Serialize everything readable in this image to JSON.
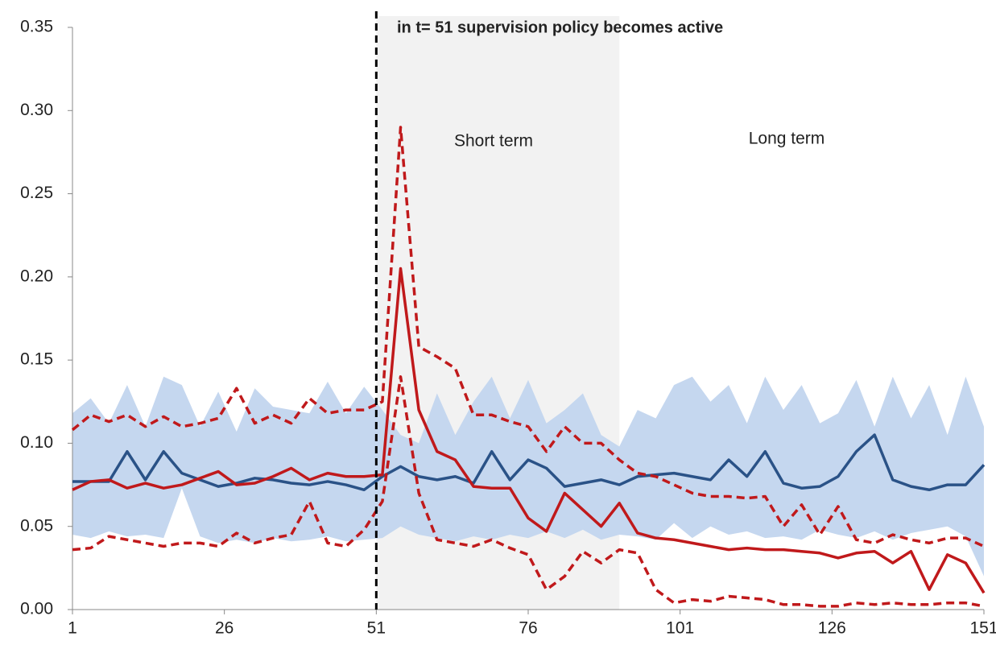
{
  "chart_data": {
    "type": "line",
    "title": "in t= 51 supervision policy becomes active",
    "annotations": [
      "Short term",
      "Long term"
    ],
    "x": [
      1,
      4,
      7,
      10,
      13,
      16,
      19,
      22,
      25,
      28,
      31,
      34,
      37,
      40,
      43,
      46,
      49,
      52,
      55,
      58,
      61,
      64,
      67,
      70,
      73,
      76,
      79,
      82,
      85,
      88,
      91,
      94,
      97,
      100,
      103,
      106,
      109,
      112,
      115,
      118,
      121,
      124,
      127,
      130,
      133,
      136,
      139,
      142,
      145,
      148,
      151
    ],
    "xlim": [
      1,
      151
    ],
    "xticks": [
      1,
      26,
      51,
      76,
      101,
      126,
      151
    ],
    "ylim": [
      0,
      0.35
    ],
    "yticks": [
      {
        "value": 0,
        "label": "0.00"
      },
      {
        "value": 0.05,
        "label": "0.05"
      },
      {
        "value": 0.1,
        "label": "0.10"
      },
      {
        "value": 0.15,
        "label": "0.15"
      },
      {
        "value": 0.2,
        "label": "0.20"
      },
      {
        "value": 0.25,
        "label": "0.25"
      },
      {
        "value": 0.3,
        "label": "0.30"
      },
      {
        "value": 0.35,
        "label": "0.35"
      }
    ],
    "vline": 51,
    "shaded_region": [
      51,
      91
    ],
    "shade_color": "#f2f2f2",
    "band": {
      "color": "#c5d7ef",
      "upper": [
        0.118,
        0.127,
        0.112,
        0.135,
        0.11,
        0.14,
        0.135,
        0.11,
        0.131,
        0.107,
        0.133,
        0.122,
        0.12,
        0.118,
        0.137,
        0.118,
        0.134,
        0.12,
        0.105,
        0.1,
        0.13,
        0.105,
        0.125,
        0.14,
        0.115,
        0.138,
        0.112,
        0.12,
        0.13,
        0.105,
        0.098,
        0.12,
        0.115,
        0.135,
        0.14,
        0.125,
        0.135,
        0.112,
        0.14,
        0.12,
        0.135,
        0.112,
        0.118,
        0.138,
        0.11,
        0.14,
        0.115,
        0.135,
        0.105,
        0.14,
        0.11
      ],
      "lower": [
        0.045,
        0.043,
        0.047,
        0.044,
        0.045,
        0.043,
        0.073,
        0.044,
        0.04,
        0.042,
        0.04,
        0.043,
        0.041,
        0.042,
        0.044,
        0.041,
        0.042,
        0.043,
        0.05,
        0.045,
        0.043,
        0.041,
        0.044,
        0.042,
        0.045,
        0.043,
        0.047,
        0.043,
        0.048,
        0.042,
        0.045,
        0.044,
        0.042,
        0.052,
        0.043,
        0.05,
        0.045,
        0.047,
        0.043,
        0.044,
        0.042,
        0.048,
        0.045,
        0.043,
        0.047,
        0.042,
        0.046,
        0.048,
        0.05,
        0.044,
        0.02
      ]
    },
    "series": [
      {
        "color": "#2a5287",
        "dashed": false,
        "values": [
          0.077,
          0.077,
          0.077,
          0.095,
          0.078,
          0.095,
          0.082,
          0.078,
          0.074,
          0.076,
          0.079,
          0.078,
          0.076,
          0.075,
          0.077,
          0.075,
          0.072,
          0.08,
          0.086,
          0.08,
          0.078,
          0.08,
          0.076,
          0.095,
          0.078,
          0.09,
          0.085,
          0.074,
          0.076,
          0.078,
          0.075,
          0.08,
          0.081,
          0.082,
          0.08,
          0.078,
          0.09,
          0.08,
          0.095,
          0.076,
          0.073,
          0.074,
          0.08,
          0.095,
          0.105,
          0.078,
          0.074,
          0.072,
          0.075,
          0.075,
          0.087
        ]
      },
      {
        "color": "#c0191b",
        "dashed": false,
        "values": [
          0.072,
          0.077,
          0.078,
          0.073,
          0.076,
          0.073,
          0.075,
          0.079,
          0.083,
          0.075,
          0.076,
          0.08,
          0.085,
          0.078,
          0.082,
          0.08,
          0.08,
          0.081,
          0.205,
          0.12,
          0.095,
          0.09,
          0.074,
          0.073,
          0.073,
          0.055,
          0.047,
          0.07,
          0.06,
          0.05,
          0.064,
          0.046,
          0.043,
          0.042,
          0.04,
          0.038,
          0.036,
          0.037,
          0.036,
          0.036,
          0.035,
          0.034,
          0.031,
          0.034,
          0.035,
          0.028,
          0.035,
          0.012,
          0.033,
          0.028,
          0.01
        ]
      },
      {
        "color": "#c0191b",
        "dashed": true,
        "values": [
          0.108,
          0.117,
          0.113,
          0.117,
          0.11,
          0.116,
          0.11,
          0.112,
          0.115,
          0.133,
          0.112,
          0.117,
          0.112,
          0.127,
          0.118,
          0.12,
          0.12,
          0.125,
          0.29,
          0.158,
          0.152,
          0.145,
          0.117,
          0.117,
          0.113,
          0.11,
          0.095,
          0.11,
          0.1,
          0.1,
          0.09,
          0.082,
          0.08,
          0.075,
          0.07,
          0.068,
          0.068,
          0.067,
          0.068,
          0.05,
          0.063,
          0.045,
          0.062,
          0.042,
          0.04,
          0.045,
          0.042,
          0.04,
          0.043,
          0.043,
          0.038
        ]
      },
      {
        "color": "#c0191b",
        "dashed": true,
        "values": [
          0.036,
          0.037,
          0.044,
          0.042,
          0.04,
          0.038,
          0.04,
          0.04,
          0.038,
          0.046,
          0.04,
          0.043,
          0.045,
          0.065,
          0.04,
          0.038,
          0.048,
          0.065,
          0.14,
          0.07,
          0.042,
          0.04,
          0.038,
          0.042,
          0.037,
          0.033,
          0.012,
          0.02,
          0.035,
          0.028,
          0.036,
          0.034,
          0.012,
          0.004,
          0.006,
          0.005,
          0.008,
          0.007,
          0.006,
          0.003,
          0.003,
          0.002,
          0.002,
          0.004,
          0.003,
          0.004,
          0.003,
          0.003,
          0.004,
          0.004,
          0.002
        ]
      }
    ]
  }
}
